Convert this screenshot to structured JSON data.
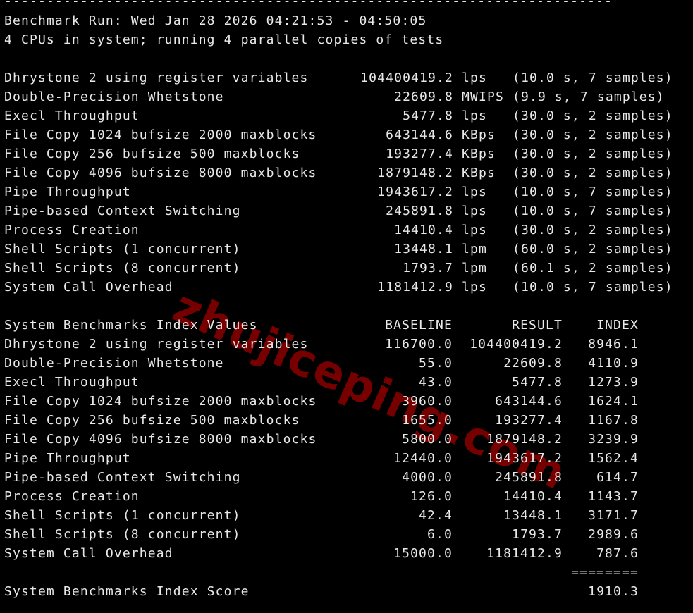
{
  "terminal": {
    "divider": "------------------------------------------------------------------------",
    "run_line": "Benchmark Run: Wed Jan 28 2026 04:21:53 - 04:50:05",
    "cpu_line": "4 CPUs in system; running 4 parallel copies of tests",
    "results": [
      {
        "name": "Dhrystone 2 using register variables",
        "value": "104400419.2",
        "unit": "lps",
        "details": "(10.0 s, 7 samples)"
      },
      {
        "name": "Double-Precision Whetstone",
        "value": "22609.8",
        "unit": "MWIPS",
        "details": "(9.9 s, 7 samples)"
      },
      {
        "name": "Execl Throughput",
        "value": "5477.8",
        "unit": "lps",
        "details": "(30.0 s, 2 samples)"
      },
      {
        "name": "File Copy 1024 bufsize 2000 maxblocks",
        "value": "643144.6",
        "unit": "KBps",
        "details": "(30.0 s, 2 samples)"
      },
      {
        "name": "File Copy 256 bufsize 500 maxblocks",
        "value": "193277.4",
        "unit": "KBps",
        "details": "(30.0 s, 2 samples)"
      },
      {
        "name": "File Copy 4096 bufsize 8000 maxblocks",
        "value": "1879148.2",
        "unit": "KBps",
        "details": "(30.0 s, 2 samples)"
      },
      {
        "name": "Pipe Throughput",
        "value": "1943617.2",
        "unit": "lps",
        "details": "(10.0 s, 7 samples)"
      },
      {
        "name": "Pipe-based Context Switching",
        "value": "245891.8",
        "unit": "lps",
        "details": "(10.0 s, 7 samples)"
      },
      {
        "name": "Process Creation",
        "value": "14410.4",
        "unit": "lps",
        "details": "(30.0 s, 2 samples)"
      },
      {
        "name": "Shell Scripts (1 concurrent)",
        "value": "13448.1",
        "unit": "lpm",
        "details": "(60.0 s, 2 samples)"
      },
      {
        "name": "Shell Scripts (8 concurrent)",
        "value": "1793.7",
        "unit": "lpm",
        "details": "(60.1 s, 2 samples)"
      },
      {
        "name": "System Call Overhead",
        "value": "1181412.9",
        "unit": "lps",
        "details": "(10.0 s, 7 samples)"
      }
    ],
    "index_header": {
      "title": "System Benchmarks Index Values",
      "baseline": "BASELINE",
      "result": "RESULT",
      "index": "INDEX"
    },
    "index_rows": [
      {
        "name": "Dhrystone 2 using register variables",
        "baseline": "116700.0",
        "result": "104400419.2",
        "index": "8946.1"
      },
      {
        "name": "Double-Precision Whetstone",
        "baseline": "55.0",
        "result": "22609.8",
        "index": "4110.9"
      },
      {
        "name": "Execl Throughput",
        "baseline": "43.0",
        "result": "5477.8",
        "index": "1273.9"
      },
      {
        "name": "File Copy 1024 bufsize 2000 maxblocks",
        "baseline": "3960.0",
        "result": "643144.6",
        "index": "1624.1"
      },
      {
        "name": "File Copy 256 bufsize 500 maxblocks",
        "baseline": "1655.0",
        "result": "193277.4",
        "index": "1167.8"
      },
      {
        "name": "File Copy 4096 bufsize 8000 maxblocks",
        "baseline": "5800.0",
        "result": "1879148.2",
        "index": "3239.9"
      },
      {
        "name": "Pipe Throughput",
        "baseline": "12440.0",
        "result": "1943617.2",
        "index": "1562.4"
      },
      {
        "name": "Pipe-based Context Switching",
        "baseline": "4000.0",
        "result": "245891.8",
        "index": "614.7"
      },
      {
        "name": "Process Creation",
        "baseline": "126.0",
        "result": "14410.4",
        "index": "1143.7"
      },
      {
        "name": "Shell Scripts (1 concurrent)",
        "baseline": "42.4",
        "result": "13448.1",
        "index": "3171.7"
      },
      {
        "name": "Shell Scripts (8 concurrent)",
        "baseline": "6.0",
        "result": "1793.7",
        "index": "2989.6"
      },
      {
        "name": "System Call Overhead",
        "baseline": "15000.0",
        "result": "1181412.9",
        "index": "787.6"
      }
    ],
    "score_divider": "========",
    "score_label": "System Benchmarks Index Score",
    "score_value": "1910.3"
  },
  "watermark": "zhujiceping.com",
  "colors": {
    "background": "#000000",
    "text": "#e8e8e8",
    "watermark": "#8b0000"
  }
}
